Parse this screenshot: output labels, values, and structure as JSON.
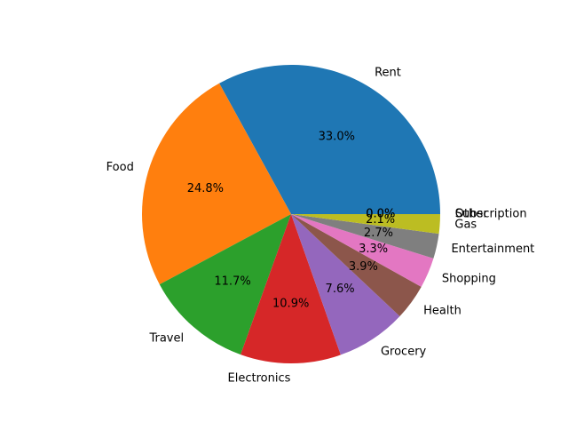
{
  "chart_data": {
    "type": "pie",
    "title": "",
    "categories": [
      "Rent",
      "Food",
      "Travel",
      "Electronics",
      "Grocery",
      "Health",
      "Shopping",
      "Entertainment",
      "Gas",
      "Subscription",
      "Other"
    ],
    "values": [
      33.0,
      24.8,
      11.7,
      10.9,
      7.6,
      3.9,
      3.3,
      2.7,
      2.1,
      0.0,
      0.0
    ],
    "value_labels": [
      "33.0%",
      "24.8%",
      "11.7%",
      "10.9%",
      "7.6%",
      "3.9%",
      "3.3%",
      "2.7%",
      "2.1%",
      "0.0%",
      "0.0%"
    ],
    "colors": [
      "#1f77b4",
      "#ff7f0e",
      "#2ca02c",
      "#d62728",
      "#9467bd",
      "#8c564b",
      "#e377c2",
      "#7f7f7f",
      "#bcbd22",
      "#17becf",
      "#1f77b4"
    ],
    "start_angle_deg": 0,
    "direction": "counterclockwise",
    "legend": "none"
  }
}
